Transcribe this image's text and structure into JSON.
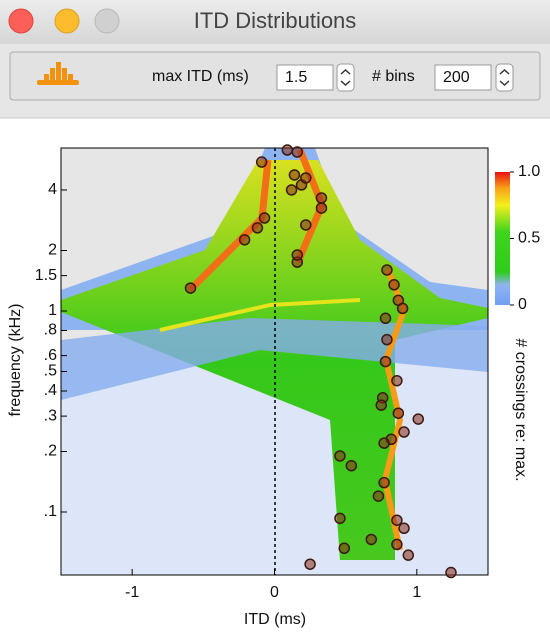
{
  "window": {
    "title": "ITD Distributions"
  },
  "toolbar": {
    "max_itd_label": "max ITD (ms)",
    "max_itd_value": "1.5",
    "bins_label": "# bins",
    "bins_value": "200"
  },
  "chart_data": {
    "type": "heatmap",
    "x_label": "ITD (ms)",
    "y_label": "frequency (kHz)",
    "xlim": [
      -1.5,
      1.5
    ],
    "xticks": [
      -1,
      0,
      1
    ],
    "ylim": [
      0.0486,
      6.47
    ],
    "y_log": true,
    "yticks": [
      4,
      2,
      1.5,
      1,
      {
        "value": 0.8,
        "label": ".8"
      },
      {
        "value": 0.6,
        "label": ".6"
      },
      {
        "value": 0.5,
        "label": ".5"
      },
      {
        "value": 0.4,
        "label": ".4"
      },
      {
        "value": 0.3,
        "label": ".3"
      },
      {
        "value": 0.2,
        "label": ".2"
      },
      {
        "value": 0.1,
        "label": ".1"
      }
    ],
    "colorbar": {
      "label": "# crossings re: max.",
      "lim": [
        0,
        1
      ],
      "ticks": [
        {
          "value": 1,
          "label": "1.0"
        },
        0.5,
        0
      ]
    },
    "series": [
      {
        "color": "#8b2a1a",
        "x": [
          -0.59,
          -0.21,
          -0.12,
          -0.07,
          -0.09,
          0.09,
          0.16,
          0.14,
          0.19,
          0.12,
          0.22,
          0.33,
          0.33,
          0.22,
          0.16,
          0.16,
          0.79,
          0.84,
          0.87,
          0.9,
          0.78,
          0.79,
          0.78,
          0.86,
          0.76,
          0.75,
          0.87,
          1.01,
          0.91,
          0.82,
          0.77,
          0.46,
          0.54,
          0.77,
          0.73,
          0.86,
          0.91,
          0.46,
          0.68,
          0.86,
          0.94,
          0.49,
          0.25,
          1.24
        ],
        "values": [
          1.3,
          2.26,
          2.59,
          2.9,
          5.51,
          6.32,
          6.18,
          4.75,
          4.24,
          4.0,
          4.59,
          3.25,
          3.65,
          2.68,
          1.75,
          1.9,
          1.6,
          1.35,
          1.13,
          1.03,
          0.92,
          0.72,
          0.56,
          0.45,
          0.37,
          0.34,
          0.31,
          0.29,
          0.25,
          0.23,
          0.22,
          0.19,
          0.17,
          0.14,
          0.12,
          0.091,
          0.083,
          0.093,
          0.073,
          0.069,
          0.061,
          0.066,
          0.055,
          0.05
        ]
      }
    ]
  }
}
